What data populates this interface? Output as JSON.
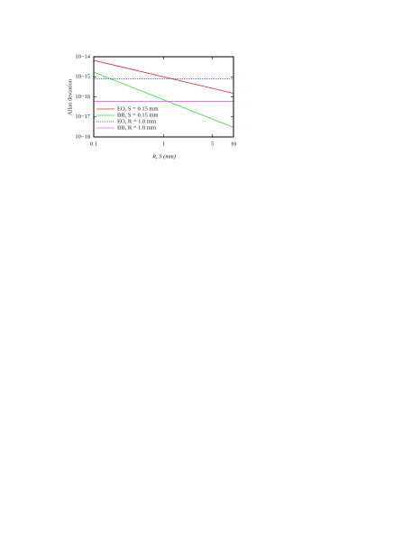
{
  "chart_data": {
    "type": "line",
    "xlabel": "R, S (mm)",
    "ylabel": "Allan deviation",
    "x": [
      0.1,
      10
    ],
    "series": [
      {
        "name": "EO, S = 0.15 mm",
        "color": "#e0202a",
        "dash": "none",
        "values": [
          6.6e-15,
          1.5e-16
        ]
      },
      {
        "name": "BB, S = 0.15 mm",
        "color": "#30e030",
        "dash": "none",
        "values": [
          1.7e-15,
          3e-18
        ]
      },
      {
        "name": "EO, R = 1.0 mm",
        "color": "#3030d0",
        "dash": "1 1",
        "values": [
          8e-16,
          8e-16
        ]
      },
      {
        "name": "BB, R = 1.0 mm",
        "color": "#f060f0",
        "dash": "none",
        "values": [
          6e-17,
          6e-17
        ]
      }
    ],
    "xscale": "log",
    "yscale": "log",
    "xlim": [
      0.1,
      10
    ],
    "ylim": [
      1e-18,
      1e-14
    ],
    "xticks": [
      0.1,
      1,
      5,
      10
    ],
    "yticks": [
      {
        "value": 1e-18,
        "label": "10−18"
      },
      {
        "value": 1e-17,
        "label": "10−17"
      },
      {
        "value": 1e-16,
        "label": "10−16"
      },
      {
        "value": 1e-15,
        "label": "10−15"
      },
      {
        "value": 1e-14,
        "label": "10−14"
      }
    ],
    "legend": "lower left"
  }
}
